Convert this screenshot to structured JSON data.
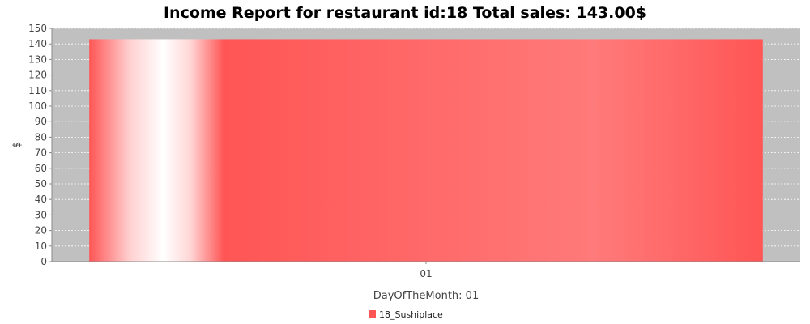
{
  "chart_data": {
    "type": "bar",
    "title": "Income Report for restaurant id:18 Total sales: 143.00$",
    "xlabel": "DayOfTheMonth: 01",
    "ylabel": "$",
    "categories": [
      "01"
    ],
    "series": [
      {
        "name": "18_Sushiplace",
        "values": [
          143
        ]
      }
    ],
    "ylim": [
      0,
      150
    ],
    "yticks": [
      0,
      10,
      20,
      30,
      40,
      50,
      60,
      70,
      80,
      90,
      100,
      110,
      120,
      130,
      140,
      150
    ],
    "grid": true,
    "legend": "bottom-center",
    "colors": {
      "plot_background": "#c0c0c0",
      "bar": "#ff5555",
      "grid": "#ffffff"
    }
  }
}
